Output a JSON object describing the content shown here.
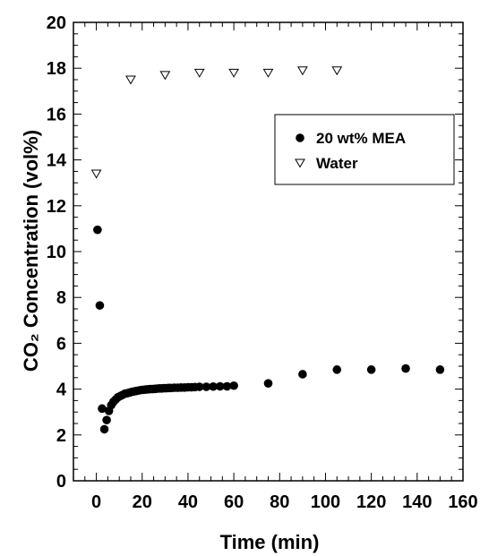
{
  "chart_data": {
    "type": "scatter",
    "xlabel": "Time (min)",
    "ylabel": "CO₂ Concentration (vol%)",
    "xlim": [
      -10,
      160
    ],
    "ylim": [
      0,
      20
    ],
    "xticks": [
      0,
      20,
      40,
      60,
      80,
      100,
      120,
      140,
      160
    ],
    "yticks": [
      0,
      2,
      4,
      6,
      8,
      10,
      12,
      14,
      16,
      18,
      20
    ],
    "grid": false,
    "legend_position": "upper-right",
    "series": [
      {
        "name": "20 wt% MEA",
        "marker": "filled-circle",
        "color": "#000000",
        "points": [
          [
            0.5,
            10.95
          ],
          [
            1.5,
            7.65
          ],
          [
            2.5,
            3.15
          ],
          [
            3.5,
            2.25
          ],
          [
            4.5,
            2.65
          ],
          [
            5.5,
            3.05
          ],
          [
            6.5,
            3.3
          ],
          [
            7.5,
            3.45
          ],
          [
            8.5,
            3.55
          ],
          [
            9.5,
            3.65
          ],
          [
            10.5,
            3.7
          ],
          [
            11.5,
            3.75
          ],
          [
            12.5,
            3.8
          ],
          [
            13.5,
            3.82
          ],
          [
            14.5,
            3.85
          ],
          [
            15.5,
            3.88
          ],
          [
            16.5,
            3.9
          ],
          [
            17.5,
            3.92
          ],
          [
            18.5,
            3.94
          ],
          [
            19.5,
            3.96
          ],
          [
            20.5,
            3.97
          ],
          [
            21.5,
            3.98
          ],
          [
            22.5,
            3.99
          ],
          [
            23.5,
            4.0
          ],
          [
            24.5,
            4.0
          ],
          [
            25.5,
            4.01
          ],
          [
            26.5,
            4.02
          ],
          [
            27.5,
            4.03
          ],
          [
            28.5,
            4.03
          ],
          [
            29.5,
            4.04
          ],
          [
            30.5,
            4.04
          ],
          [
            31.5,
            4.05
          ],
          [
            32.5,
            4.05
          ],
          [
            34,
            4.06
          ],
          [
            35.5,
            4.06
          ],
          [
            37,
            4.07
          ],
          [
            38.5,
            4.07
          ],
          [
            40,
            4.08
          ],
          [
            41.5,
            4.08
          ],
          [
            43,
            4.09
          ],
          [
            45,
            4.1
          ],
          [
            48,
            4.1
          ],
          [
            51,
            4.11
          ],
          [
            54,
            4.12
          ],
          [
            57,
            4.12
          ],
          [
            60,
            4.15
          ],
          [
            75,
            4.25
          ],
          [
            90,
            4.65
          ],
          [
            105,
            4.85
          ],
          [
            120,
            4.85
          ],
          [
            135,
            4.9
          ],
          [
            150,
            4.85
          ]
        ]
      },
      {
        "name": "Water",
        "marker": "open-triangle-down",
        "color": "#000000",
        "points": [
          [
            0,
            13.4
          ],
          [
            15,
            17.5
          ],
          [
            30,
            17.7
          ],
          [
            45,
            17.8
          ],
          [
            60,
            17.8
          ],
          [
            75,
            17.8
          ],
          [
            90,
            17.9
          ],
          [
            105,
            17.9
          ]
        ]
      }
    ]
  }
}
